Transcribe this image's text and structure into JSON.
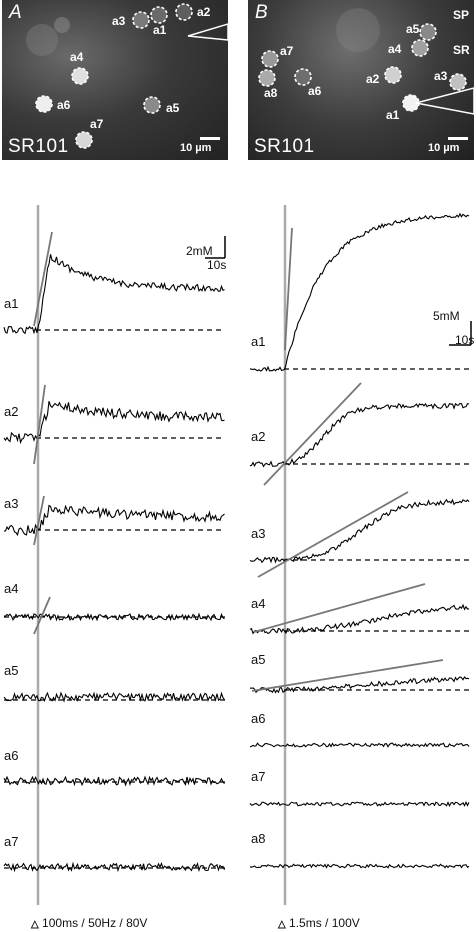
{
  "panel_a": {
    "letter": "A",
    "stain": "SR101",
    "scale": "10 µm",
    "cells": [
      {
        "id": "a1",
        "label": "a1"
      },
      {
        "id": "a2",
        "label": "a2"
      },
      {
        "id": "a3",
        "label": "a3"
      },
      {
        "id": "a4",
        "label": "a4"
      },
      {
        "id": "a5",
        "label": "a5"
      },
      {
        "id": "a6",
        "label": "a6"
      },
      {
        "id": "a7",
        "label": "a7"
      }
    ],
    "calibration": {
      "amplitude": "2mM",
      "time": "10s"
    },
    "stimulus": "100ms / 50Hz / 80V",
    "traces": [
      "a1",
      "a2",
      "a3",
      "a4",
      "a5",
      "a6",
      "a7"
    ]
  },
  "panel_b": {
    "letter": "B",
    "stain": "SR101",
    "scale": "10 µm",
    "layer_top": "SP",
    "layer_bottom": "SR",
    "cells": [
      {
        "id": "a1",
        "label": "a1"
      },
      {
        "id": "a2",
        "label": "a2"
      },
      {
        "id": "a3",
        "label": "a3"
      },
      {
        "id": "a4",
        "label": "a4"
      },
      {
        "id": "a5",
        "label": "a5"
      },
      {
        "id": "a6",
        "label": "a6"
      },
      {
        "id": "a7",
        "label": "a7"
      },
      {
        "id": "a8",
        "label": "a8"
      }
    ],
    "calibration": {
      "amplitude": "5mM",
      "time": "10s"
    },
    "stimulus": "1.5ms / 100V",
    "traces": [
      "a1",
      "a2",
      "a3",
      "a4",
      "a5",
      "a6",
      "a7",
      "a8"
    ]
  }
}
